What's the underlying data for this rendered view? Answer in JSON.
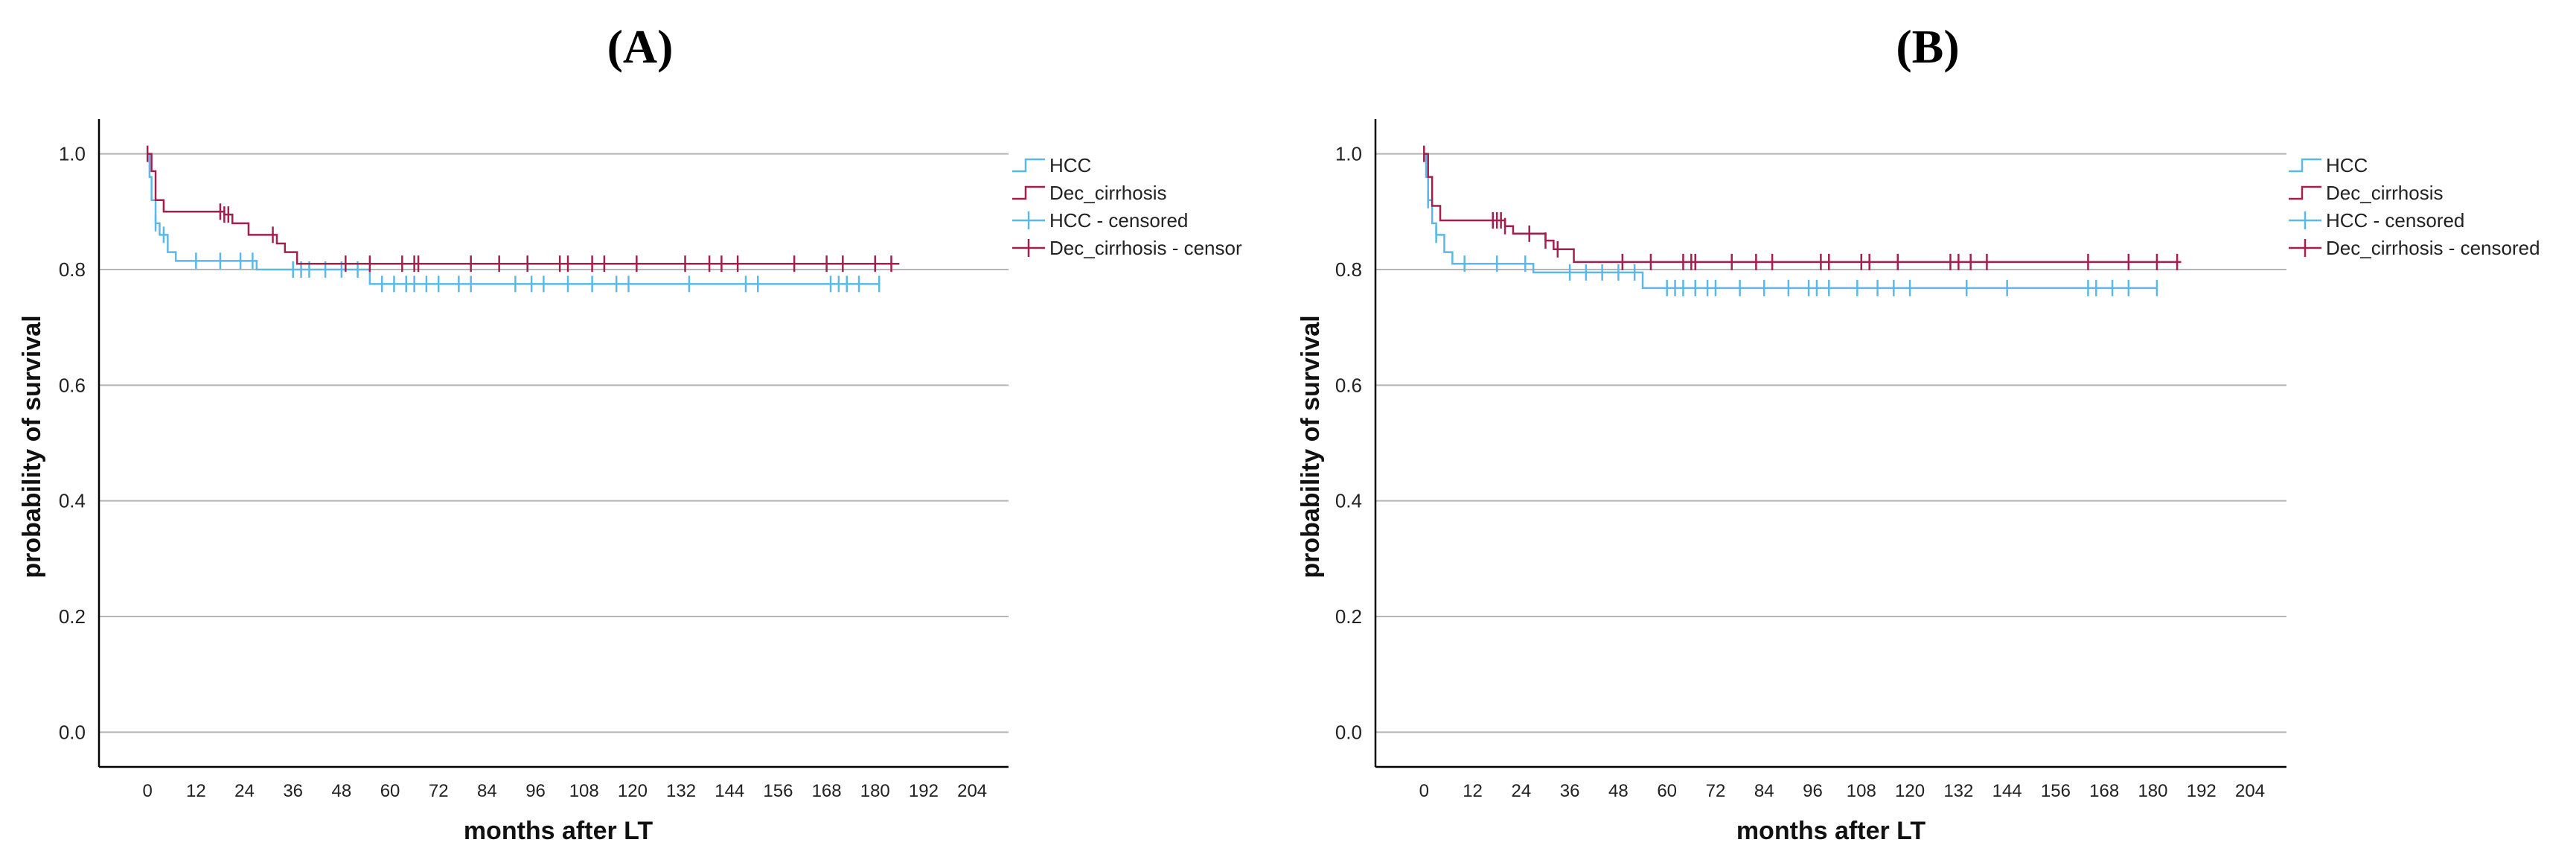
{
  "colors": {
    "HCC": "#5bb8e8",
    "Dec_cirrhosis": "#a31f4e",
    "grid": "#b5b5b5",
    "axis": "#000000"
  },
  "chart_data": [
    {
      "type": "line",
      "subtype": "kaplan-meier",
      "title": "(A)",
      "xlabel": "months after LT",
      "ylabel": "probability of survival",
      "xticks": [
        0,
        12,
        24,
        36,
        48,
        60,
        72,
        84,
        96,
        108,
        120,
        132,
        144,
        156,
        168,
        180,
        192,
        204
      ],
      "yticks": [
        0.0,
        0.2,
        0.4,
        0.6,
        0.8,
        1.0
      ],
      "ytick_labels": [
        "0.0",
        "0.2",
        "0.4",
        "0.6",
        "0.8",
        "1.0"
      ],
      "xlim": [
        -12,
        213
      ],
      "ylim": [
        -0.06,
        1.06
      ],
      "legend": [
        "HCC",
        "Dec_cirrhosis",
        "HCC - censored",
        "Dec_cirrhosis - censor"
      ],
      "series": [
        {
          "name": "HCC",
          "steps": [
            [
              0,
              1.0
            ],
            [
              0.5,
              0.96
            ],
            [
              1,
              0.92
            ],
            [
              2,
              0.88
            ],
            [
              3,
              0.86
            ],
            [
              5,
              0.83
            ],
            [
              7,
              0.815
            ],
            [
              27,
              0.8
            ],
            [
              55,
              0.775
            ],
            [
              181,
              0.775
            ]
          ],
          "censored": [
            2,
            4,
            12,
            18,
            23,
            26,
            36,
            38,
            40,
            44,
            48,
            52,
            58,
            61,
            64,
            66,
            69,
            72,
            77,
            80,
            91,
            95,
            98,
            104,
            110,
            116,
            119,
            134,
            148,
            151,
            169,
            171,
            173,
            176,
            181
          ]
        },
        {
          "name": "Dec_cirrhosis",
          "steps": [
            [
              0,
              1.0
            ],
            [
              1,
              0.97
            ],
            [
              2,
              0.92
            ],
            [
              4,
              0.9
            ],
            [
              19,
              0.895
            ],
            [
              21,
              0.88
            ],
            [
              25,
              0.86
            ],
            [
              32,
              0.845
            ],
            [
              34,
              0.83
            ],
            [
              37,
              0.81
            ],
            [
              186,
              0.81
            ]
          ],
          "censored": [
            0,
            18,
            19,
            20,
            31,
            49,
            55,
            63,
            66,
            67,
            80,
            87,
            94,
            102,
            104,
            110,
            113,
            121,
            133,
            139,
            142,
            146,
            160,
            168,
            172,
            180,
            184
          ]
        }
      ]
    },
    {
      "type": "line",
      "subtype": "kaplan-meier",
      "title": "(B)",
      "xlabel": "months after LT",
      "ylabel": "probability of survival",
      "xticks": [
        0,
        12,
        24,
        36,
        48,
        60,
        72,
        84,
        96,
        108,
        120,
        132,
        144,
        156,
        168,
        180,
        192,
        204
      ],
      "yticks": [
        0.0,
        0.2,
        0.4,
        0.6,
        0.8,
        1.0
      ],
      "ytick_labels": [
        "0.0",
        "0.2",
        "0.4",
        "0.6",
        "0.8",
        "1.0"
      ],
      "xlim": [
        -12,
        213
      ],
      "ylim": [
        -0.06,
        1.06
      ],
      "legend": [
        "HCC",
        "Dec_cirrhosis",
        "HCC - censored",
        "Dec_cirrhosis - censored"
      ],
      "series": [
        {
          "name": "HCC",
          "steps": [
            [
              0,
              1.0
            ],
            [
              0.5,
              0.96
            ],
            [
              1,
              0.92
            ],
            [
              2,
              0.88
            ],
            [
              3,
              0.86
            ],
            [
              5,
              0.83
            ],
            [
              7,
              0.81
            ],
            [
              27,
              0.795
            ],
            [
              54,
              0.768
            ],
            [
              181,
              0.768
            ]
          ],
          "censored": [
            1,
            3,
            10,
            18,
            25,
            36,
            40,
            44,
            48,
            52,
            60,
            62,
            64,
            67,
            70,
            72,
            78,
            84,
            90,
            95,
            97,
            100,
            107,
            112,
            116,
            120,
            134,
            144,
            164,
            166,
            170,
            174,
            181
          ]
        },
        {
          "name": "Dec_cirrhosis",
          "steps": [
            [
              0,
              1.0
            ],
            [
              1,
              0.96
            ],
            [
              2,
              0.91
            ],
            [
              4,
              0.885
            ],
            [
              20,
              0.875
            ],
            [
              22,
              0.862
            ],
            [
              30,
              0.85
            ],
            [
              32,
              0.835
            ],
            [
              37,
              0.813
            ],
            [
              187,
              0.813
            ]
          ],
          "censored": [
            0,
            17,
            18,
            19,
            20,
            26,
            30,
            33,
            49,
            56,
            64,
            66,
            67,
            76,
            82,
            86,
            98,
            100,
            108,
            110,
            117,
            130,
            132,
            135,
            139,
            164,
            174,
            181,
            186
          ]
        }
      ]
    }
  ]
}
